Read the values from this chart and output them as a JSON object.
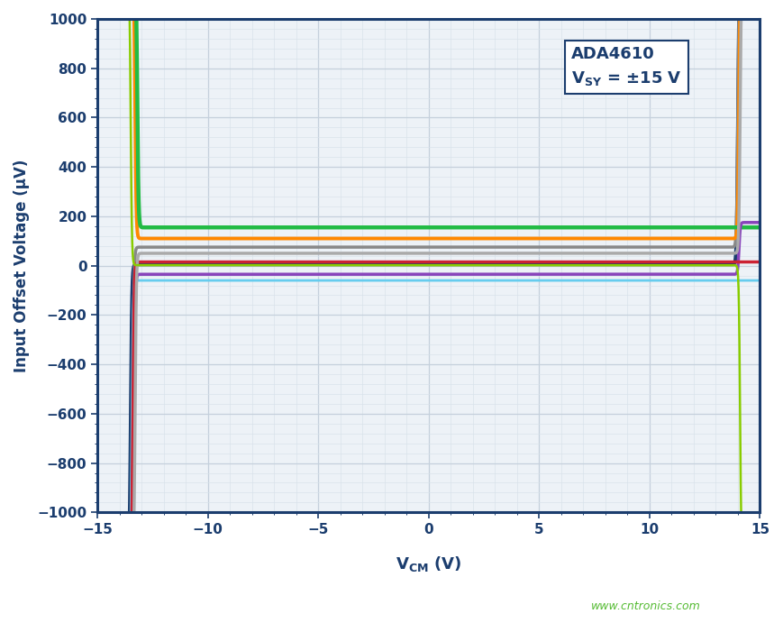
{
  "ylabel": "Input Offset Voltage (µV)",
  "xlim": [
    -15,
    15
  ],
  "ylim": [
    -1000,
    1000
  ],
  "xticks": [
    -15,
    -10,
    -5,
    0,
    5,
    10,
    15
  ],
  "yticks": [
    -1000,
    -800,
    -600,
    -400,
    -200,
    0,
    200,
    400,
    600,
    800,
    1000
  ],
  "watermark": "www.cntronics.com",
  "bg_color": "#edf2f7",
  "grid_major_color": "#c5d0dc",
  "grid_minor_color": "#d8e2ea",
  "annotation_title": "ADA4610",
  "annotation_sub": "V_SY = ±15 V",
  "label_color": "#1b3d6e",
  "curves": [
    {
      "color": "#1b3d6e",
      "flat": 5,
      "lext": -1200,
      "rext": 1200,
      "lclip": -13.5,
      "rclip": 14.0,
      "lw": 2.8,
      "sharpness": 35
    },
    {
      "color": "#888888",
      "flat": 75,
      "lext": -1200,
      "rext": 1200,
      "lclip": -13.4,
      "rclip": 14.0,
      "lw": 2.5,
      "sharpness": 35
    },
    {
      "color": "#ff8800",
      "flat": 110,
      "lext": 1200,
      "rext": 1200,
      "lclip": -13.3,
      "rclip": 14.05,
      "lw": 2.8,
      "sharpness": 35
    },
    {
      "color": "#22bb44",
      "flat": 155,
      "lext": 1200,
      "rext": 155,
      "lclip": -13.2,
      "rclip": 14.1,
      "lw": 3.2,
      "sharpness": 35
    },
    {
      "color": "#66ccee",
      "flat": -60,
      "lext": -1200,
      "rext": -60,
      "lclip": -13.45,
      "rclip": 14.0,
      "lw": 2.0,
      "sharpness": 35
    },
    {
      "color": "#8844bb",
      "flat": -35,
      "lext": -1200,
      "rext": 175,
      "lclip": -13.35,
      "rclip": 14.05,
      "lw": 2.5,
      "sharpness": 35
    },
    {
      "color": "#cc2233",
      "flat": 15,
      "lext": -1200,
      "rext": 15,
      "lclip": -13.4,
      "rclip": 14.0,
      "lw": 2.5,
      "sharpness": 35
    },
    {
      "color": "#aaaaaa",
      "flat": 50,
      "lext": -1200,
      "rext": 1200,
      "lclip": -13.3,
      "rclip": 14.1,
      "lw": 2.5,
      "sharpness": 35
    },
    {
      "color": "#88cc00",
      "flat": 2,
      "lext": 1200,
      "rext": -1200,
      "lclip": -13.5,
      "rclip": 14.1,
      "lw": 1.8,
      "sharpness": 35
    }
  ]
}
